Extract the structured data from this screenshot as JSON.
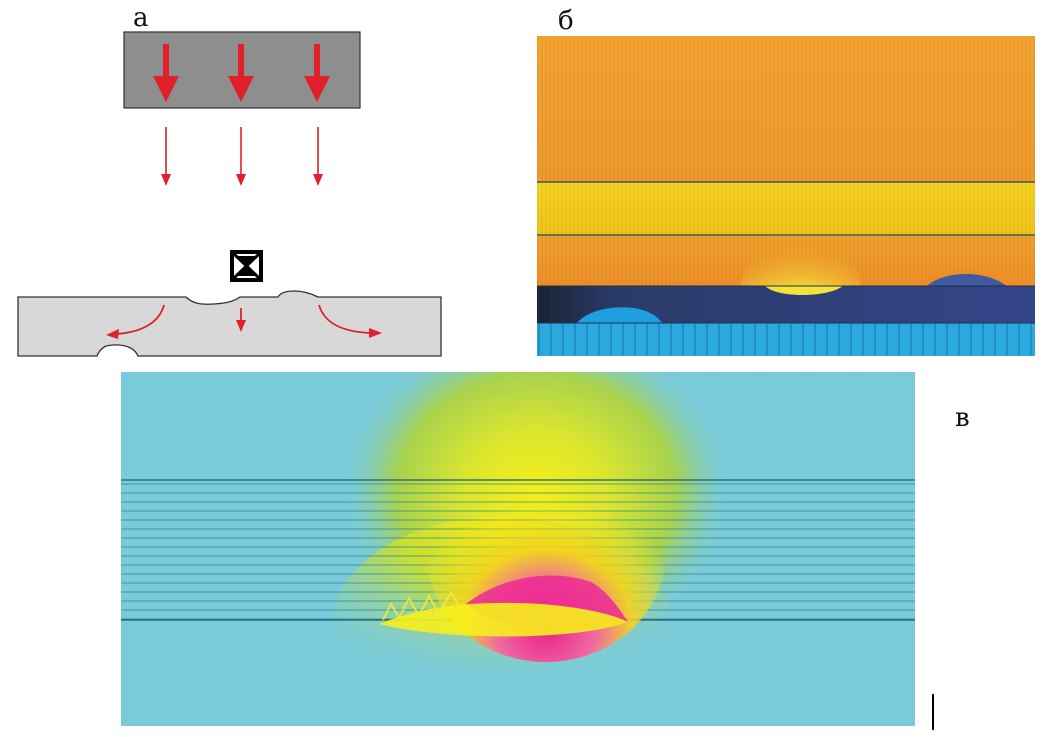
{
  "labels": {
    "a": "а",
    "b": "б",
    "v": "в"
  },
  "colors": {
    "arrow": "#e0202a",
    "source_block": "#8e8e8e",
    "specimen": "#d8d8d8",
    "field_orange": "#f0a030",
    "field_yellow": "#f2d21e",
    "conductor_dark": "#2c3f7a",
    "base_cyan": "#2aa8e0",
    "background_cyan": "#79cbdb",
    "peak_magenta": "#e8208a"
  },
  "icons": {
    "sensor": "crossed-box-icon"
  }
}
